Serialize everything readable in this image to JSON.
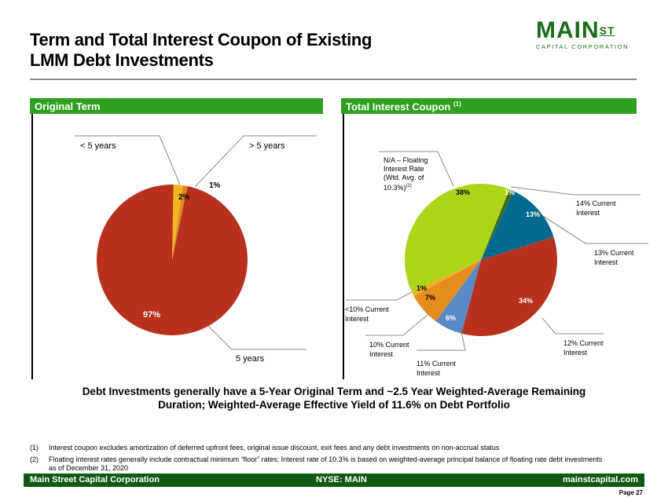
{
  "title_line1": "Term and Total Interest Coupon of Existing",
  "title_line2": "LMM Debt Investments",
  "logo": {
    "main": "MAIN",
    "st": "ST",
    "sub": "CAPITAL CORPORATION"
  },
  "colors": {
    "header_green": "#2ea01f",
    "footer_green": "#0f5a10",
    "logo_green": "#1d6b1d"
  },
  "sections": {
    "left": "Original Term",
    "right": "Total Interest Coupon",
    "right_sup": "(1)"
  },
  "chart_data": [
    {
      "type": "pie",
      "title": "Original Term",
      "slices": [
        {
          "label": "< 5 years",
          "value": 2,
          "data_label": "2%",
          "color": "#f2b51e"
        },
        {
          "label": "> 5 years",
          "value": 1,
          "data_label": "1%",
          "color": "#e08a1c"
        },
        {
          "label": "5 years",
          "value": 97,
          "data_label": "97%",
          "color": "#b8301e"
        }
      ]
    },
    {
      "type": "pie",
      "title": "Total Interest Coupon",
      "slices": [
        {
          "label": "14% Current Interest",
          "value": 1,
          "data_label": "1%",
          "color": "#3e6b20"
        },
        {
          "label": "13% Current Interest",
          "value": 13,
          "data_label": "13%",
          "color": "#006a8e"
        },
        {
          "label": "12% Current Interest",
          "value": 34,
          "data_label": "34%",
          "color": "#b8301e"
        },
        {
          "label": "11% Current Interest",
          "value": 6,
          "data_label": "6%",
          "color": "#5a89c8"
        },
        {
          "label": "10% Current Interest",
          "value": 7,
          "data_label": "7%",
          "color": "#e58d1f"
        },
        {
          "label": "<10% Current Interest",
          "value": 1,
          "data_label": "1%",
          "color": "#f0b21e"
        },
        {
          "label": "N/A – Floating Interest Rate (Wtd. Avg. of 10.3%)",
          "label_sup": "(2)",
          "value": 38,
          "data_label": "38%",
          "color": "#aed41a"
        }
      ]
    }
  ],
  "labels": {
    "lt5": "< 5 years",
    "gt5": "> 5 years",
    "eq5": "5 years",
    "na1": "N/A – Floating",
    "na2": "Interest Rate",
    "na3": "(Wtd. Avg. of",
    "na4": "10.3%)",
    "na_sup": "(2)",
    "c14a": "14% Current",
    "c14b": "Interest",
    "c13a": "13% Current",
    "c13b": "Interest",
    "c12a": "12% Current",
    "c12b": "Interest",
    "c11a": "11% Current",
    "c11b": "Interest",
    "c10a": "10% Current",
    "c10b": "Interest",
    "clt10a": "<10% Current",
    "clt10b": "Interest"
  },
  "summary_line1": "Debt Investments generally have a 5-Year Original Term and ~2.5 Year Weighted-Average Remaining",
  "summary_line2": "Duration;   Weighted-Average Effective Yield of 11.6% on Debt Portfolio",
  "footnotes": [
    {
      "num": "(1)",
      "text": "Interest coupon excludes amortization of deferred upfront fees, original issue discount, exit fees and any debt investments on non-accrual status"
    },
    {
      "num": "(2)",
      "text": "Floating interest rates generally include contractual minimum “floor” rates; Interest rate of 10.3% is based on weighted-average principal balance of floating rate debt investments",
      "text2": "as of December 31, 2020"
    }
  ],
  "footer": {
    "left": "Main Street Capital Corporation",
    "center": "NYSE: MAIN",
    "right": "mainstcapital.com"
  },
  "page": "Page  27"
}
